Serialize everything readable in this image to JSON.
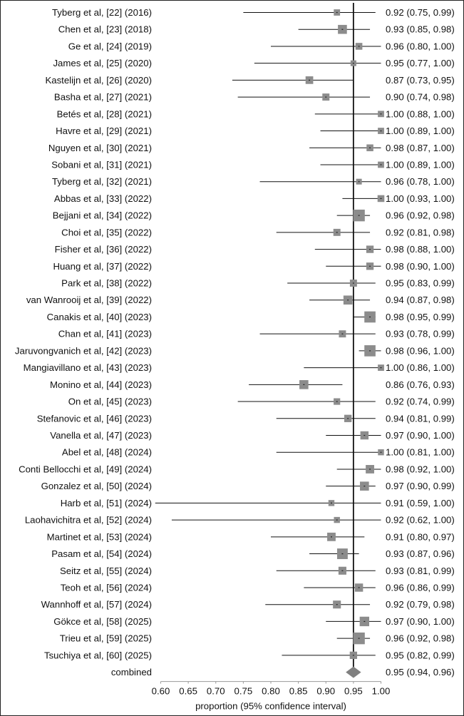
{
  "chart_data": {
    "type": "forest",
    "title": "",
    "xlabel": "proportion (95% confidence interval)",
    "ylabel": "",
    "xlim": [
      0.6,
      1.0
    ],
    "xticks": [
      "0.60",
      "0.65",
      "0.70",
      "0.75",
      "0.80",
      "0.85",
      "0.90",
      "0.95",
      "1.00"
    ],
    "reference_line": 0.95,
    "grid": false,
    "studies": [
      {
        "label": "Tyberg et al, [22] (2016)",
        "est": 0.92,
        "lo": 0.75,
        "hi": 0.99,
        "text": "0.92 (0.75, 0.99)",
        "weight": 1
      },
      {
        "label": "Chen et al, [23] (2018)",
        "est": 0.93,
        "lo": 0.85,
        "hi": 0.98,
        "text": "0.93 (0.85, 0.98)",
        "weight": 2
      },
      {
        "label": "Ge et al, [24] (2019)",
        "est": 0.96,
        "lo": 0.8,
        "hi": 1.0,
        "text": "0.96 (0.80, 1.00)",
        "weight": 1.2
      },
      {
        "label": "James et al, [25] (2020)",
        "est": 0.95,
        "lo": 0.77,
        "hi": 1.0,
        "text": "0.95 (0.77, 1.00)",
        "weight": 0.8
      },
      {
        "label": "Kastelijn et al, [26] (2020)",
        "est": 0.87,
        "lo": 0.73,
        "hi": 0.95,
        "text": "0.87 (0.73, 0.95)",
        "weight": 1.5
      },
      {
        "label": "Basha et al, [27] (2021)",
        "est": 0.9,
        "lo": 0.74,
        "hi": 0.98,
        "text": "0.90 (0.74, 0.98)",
        "weight": 1.3
      },
      {
        "label": "Betés et al, [28] (2021)",
        "est": 1.0,
        "lo": 0.88,
        "hi": 1.0,
        "text": "1.00 (0.88, 1.00)",
        "weight": 1
      },
      {
        "label": "Havre et al, [29] (2021)",
        "est": 1.0,
        "lo": 0.89,
        "hi": 1.0,
        "text": "1.00 (0.89, 1.00)",
        "weight": 1
      },
      {
        "label": "Nguyen et al, [30] (2021)",
        "est": 0.98,
        "lo": 0.87,
        "hi": 1.0,
        "text": "0.98 (0.87, 1.00)",
        "weight": 1.2
      },
      {
        "label": "Sobani et al, [31] (2021)",
        "est": 1.0,
        "lo": 0.89,
        "hi": 1.0,
        "text": "1.00 (0.89, 1.00)",
        "weight": 1
      },
      {
        "label": "Tyberg et al, [32] (2021)",
        "est": 0.96,
        "lo": 0.78,
        "hi": 1.0,
        "text": "0.96 (0.78, 1.00)",
        "weight": 0.8
      },
      {
        "label": "Abbas et al, [33] (2022)",
        "est": 1.0,
        "lo": 0.93,
        "hi": 1.0,
        "text": "1.00 (0.93, 1.00)",
        "weight": 1.2
      },
      {
        "label": "Bejjani et al, [34] (2022)",
        "est": 0.96,
        "lo": 0.92,
        "hi": 0.98,
        "text": "0.96 (0.92, 0.98)",
        "weight": 3
      },
      {
        "label": "Choi  et al, [35] (2022)",
        "est": 0.92,
        "lo": 0.81,
        "hi": 0.98,
        "text": "0.92 (0.81, 0.98)",
        "weight": 1.3
      },
      {
        "label": "Fisher et al, [36] (2022)",
        "est": 0.98,
        "lo": 0.88,
        "hi": 1.0,
        "text": "0.98 (0.88, 1.00)",
        "weight": 1.4
      },
      {
        "label": "Huang et al, [37] (2022)",
        "est": 0.98,
        "lo": 0.9,
        "hi": 1.0,
        "text": "0.98 (0.90, 1.00)",
        "weight": 1.4
      },
      {
        "label": "Park et al, [38] (2022)",
        "est": 0.95,
        "lo": 0.83,
        "hi": 0.99,
        "text": "0.95 (0.83, 0.99)",
        "weight": 1.3
      },
      {
        "label": "van Wanrooij et al, [39] (2022)",
        "est": 0.94,
        "lo": 0.87,
        "hi": 0.98,
        "text": "0.94 (0.87, 0.98)",
        "weight": 2
      },
      {
        "label": "Canakis et al, [40] (2023)",
        "est": 0.98,
        "lo": 0.95,
        "hi": 0.99,
        "text": "0.98 (0.95, 0.99)",
        "weight": 2.8
      },
      {
        "label": "Chan et al, [41] (2023)",
        "est": 0.93,
        "lo": 0.78,
        "hi": 0.99,
        "text": "0.93 (0.78, 0.99)",
        "weight": 1.3
      },
      {
        "label": "Jaruvongvanich et al, [42] (2023)",
        "est": 0.98,
        "lo": 0.96,
        "hi": 1.0,
        "text": "0.98 (0.96, 1.00)",
        "weight": 2.8
      },
      {
        "label": "Mangiavillano et al, [43] (2023)",
        "est": 1.0,
        "lo": 0.86,
        "hi": 1.0,
        "text": "1.00 (0.86, 1.00)",
        "weight": 1
      },
      {
        "label": "Monino et al, [44] (2023)",
        "est": 0.86,
        "lo": 0.76,
        "hi": 0.93,
        "text": "0.86 (0.76, 0.93)",
        "weight": 2
      },
      {
        "label": "On et al, [45] (2023)",
        "est": 0.92,
        "lo": 0.74,
        "hi": 0.99,
        "text": "0.92 (0.74, 0.99)",
        "weight": 1.1
      },
      {
        "label": "Stefanovic et al, [46] (2023)",
        "est": 0.94,
        "lo": 0.81,
        "hi": 0.99,
        "text": "0.94 (0.81, 0.99)",
        "weight": 1.4
      },
      {
        "label": "Vanella et al, [47] (2023)",
        "est": 0.97,
        "lo": 0.9,
        "hi": 1.0,
        "text": "0.97 (0.90, 1.00)",
        "weight": 1.7
      },
      {
        "label": "Abel et al, [48] (2024)",
        "est": 1.0,
        "lo": 0.81,
        "hi": 1.0,
        "text": "1.00 (0.81, 1.00)",
        "weight": 0.9
      },
      {
        "label": "Conti Bellocchi et al, [49] (2024)",
        "est": 0.98,
        "lo": 0.92,
        "hi": 1.0,
        "text": "0.98 (0.92, 1.00)",
        "weight": 1.8
      },
      {
        "label": "Gonzalez et al, [50] (2024)",
        "est": 0.97,
        "lo": 0.9,
        "hi": 0.99,
        "text": "0.97 (0.90, 0.99)",
        "weight": 2
      },
      {
        "label": "Harb et al, [51] (2024)",
        "est": 0.91,
        "lo": 0.59,
        "hi": 1.0,
        "text": "0.91 (0.59, 1.00)",
        "weight": 0.9
      },
      {
        "label": "Laohavichitra et al, [52] (2024)",
        "est": 0.92,
        "lo": 0.62,
        "hi": 1.0,
        "text": "0.92 (0.62, 1.00)",
        "weight": 0.9
      },
      {
        "label": "Martinet et al, [53] (2024)",
        "est": 0.91,
        "lo": 0.8,
        "hi": 0.97,
        "text": "0.91 (0.80, 0.97)",
        "weight": 1.8
      },
      {
        "label": "Pasam et al, [54] (2024)",
        "est": 0.93,
        "lo": 0.87,
        "hi": 0.96,
        "text": "0.93 (0.87, 0.96)",
        "weight": 2.6
      },
      {
        "label": "Seitz et al, [55] (2024)",
        "est": 0.93,
        "lo": 0.81,
        "hi": 0.99,
        "text": "0.93 (0.81, 0.99)",
        "weight": 1.6
      },
      {
        "label": "Teoh et al, [56] (2024)",
        "est": 0.96,
        "lo": 0.86,
        "hi": 0.99,
        "text": "0.96 (0.86, 0.99)",
        "weight": 1.7
      },
      {
        "label": "Wannhoff et al, [57] (2024)",
        "est": 0.92,
        "lo": 0.79,
        "hi": 0.98,
        "text": "0.92 (0.79, 0.98)",
        "weight": 1.6
      },
      {
        "label": "Gökce et al, [58] (2025)",
        "est": 0.97,
        "lo": 0.9,
        "hi": 1.0,
        "text": "0.97 (0.90, 1.00)",
        "weight": 2.2
      },
      {
        "label": "Trieu et al, [59] (2025)",
        "est": 0.96,
        "lo": 0.92,
        "hi": 0.98,
        "text": "0.96 (0.92, 0.98)",
        "weight": 3
      },
      {
        "label": "Tsuchiya et al, [60] (2025)",
        "est": 0.95,
        "lo": 0.82,
        "hi": 0.99,
        "text": "0.95 (0.82, 0.99)",
        "weight": 1.4
      }
    ],
    "combined": {
      "label": "combined",
      "est": 0.95,
      "lo": 0.94,
      "hi": 0.96,
      "text": "0.95 (0.94, 0.96)"
    },
    "colors": {
      "box": "#8c8c8c",
      "line": "#111111",
      "diamond": "#808080",
      "axis": "#999999"
    }
  }
}
